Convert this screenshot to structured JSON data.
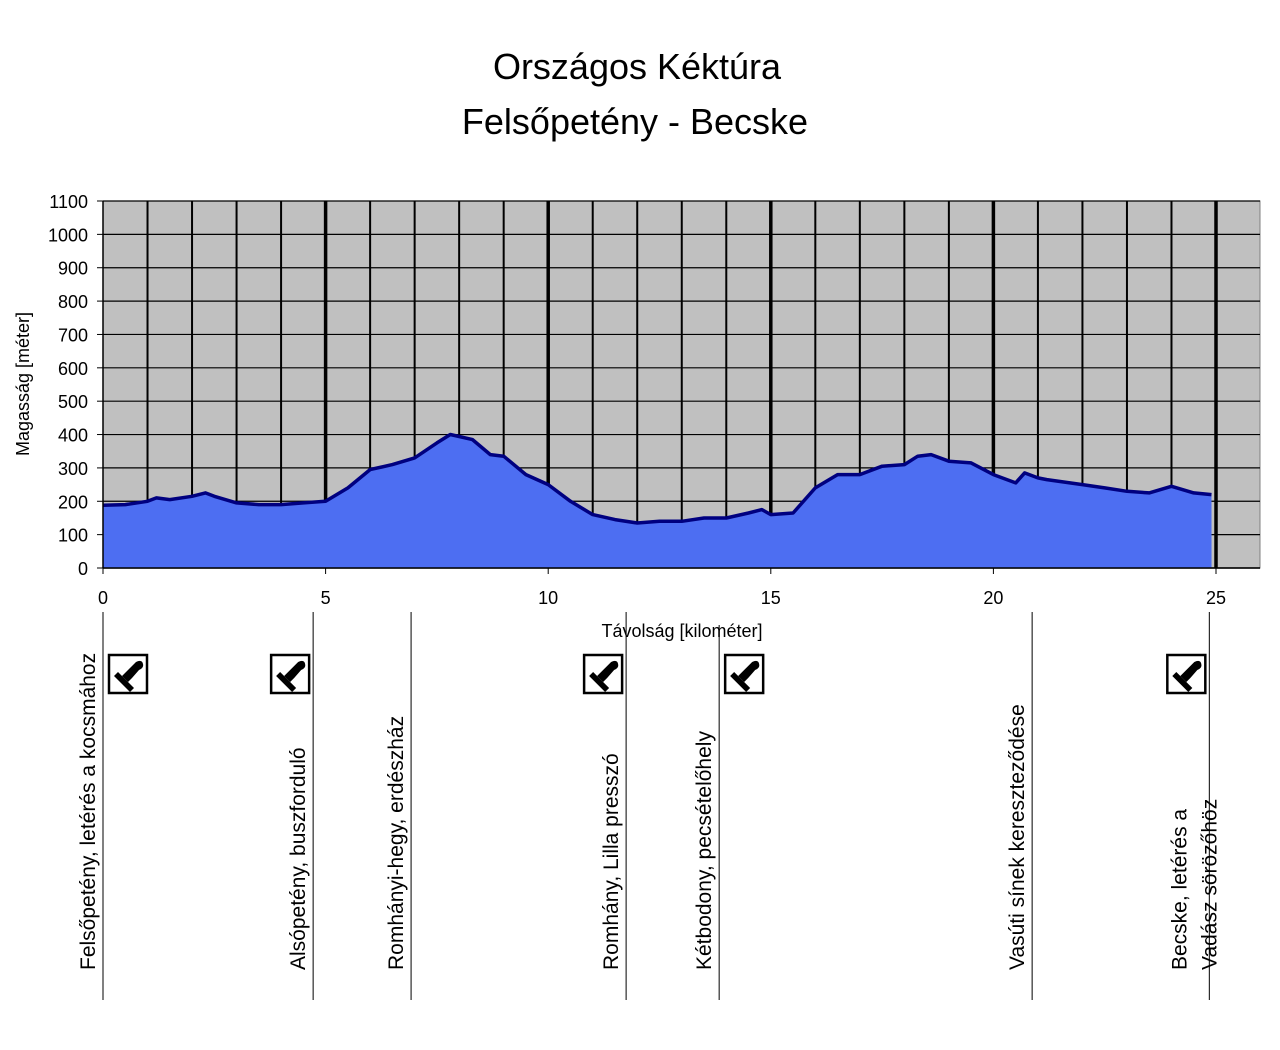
{
  "chart_data": {
    "type": "area",
    "title": "Országos Kéktúra",
    "subtitle": "Felsőpetény - Becske",
    "xlabel": "Távolság [kilométer]",
    "ylabel": "Magasság [méter]",
    "xlim": [
      0,
      26
    ],
    "ylim": [
      0,
      1100
    ],
    "xticks": [
      0,
      5,
      10,
      15,
      20,
      25
    ],
    "yticks": [
      0,
      100,
      200,
      300,
      400,
      500,
      600,
      700,
      800,
      900,
      1000,
      1100
    ],
    "grid": true,
    "colors": {
      "background": "#c0c0c0",
      "fill": "#4d6ef2",
      "line": "#000080"
    },
    "x": [
      0,
      0.5,
      1,
      1.2,
      1.5,
      2,
      2.3,
      2.5,
      3,
      3.5,
      4,
      4.5,
      5,
      5.5,
      6,
      6.5,
      7,
      7.5,
      7.8,
      8.3,
      8.7,
      9,
      9.5,
      10,
      10.5,
      11,
      11.5,
      12,
      12.5,
      13,
      13.5,
      14,
      14.5,
      14.8,
      15,
      15.5,
      16,
      16.5,
      17,
      17.5,
      18,
      18.3,
      18.6,
      19,
      19.5,
      20,
      20.5,
      20.7,
      21,
      21.2,
      22,
      22.5,
      23,
      23.5,
      24,
      24.5,
      24.9
    ],
    "y": [
      188,
      190,
      200,
      210,
      205,
      215,
      225,
      215,
      195,
      190,
      190,
      195,
      200,
      240,
      295,
      310,
      330,
      375,
      400,
      385,
      340,
      335,
      280,
      250,
      200,
      160,
      145,
      135,
      140,
      140,
      150,
      150,
      165,
      175,
      160,
      165,
      240,
      280,
      280,
      305,
      310,
      335,
      340,
      320,
      315,
      280,
      255,
      285,
      270,
      265,
      250,
      240,
      230,
      225,
      245,
      225,
      220
    ],
    "locations": [
      {
        "km": 0,
        "name": "Felsőpetény, letérés a kocsmához",
        "stamp": true
      },
      {
        "km": 4.72,
        "name": "Alsópetény, buszforduló",
        "stamp": true
      },
      {
        "km": 6.92,
        "name": "Romhányi-hegy, erdészház",
        "stamp": false
      },
      {
        "km": 11.75,
        "name": "Romhány, Lilla presszó",
        "stamp": true
      },
      {
        "km": 13.84,
        "name": "Kétbodony, pecsételőhely",
        "stamp": true
      },
      {
        "km": 20.87,
        "name": "Vasúti sínek kereszteződése",
        "stamp": false
      },
      {
        "km": 24.85,
        "name": "Becske, letérés a|Vadász sörözőhöz",
        "stamp": true
      }
    ]
  }
}
